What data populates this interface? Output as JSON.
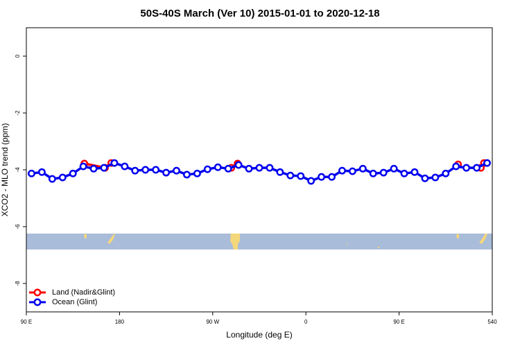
{
  "chart_data": {
    "type": "line",
    "title": "50S-40S March (Ver 10)   2015-01-01 to 2020-12-18",
    "x_label": "Longitude (deg E)",
    "y_label": "XCO2 - MLO trend (ppm)",
    "xlim": [
      90,
      540
    ],
    "ylim": [
      -9,
      1
    ],
    "xticks": [
      {
        "value": 90,
        "label": "90 E"
      },
      180,
      {
        "value": 270,
        "label": "90 W"
      },
      {
        "value": 360,
        "label": "0"
      },
      {
        "value": 450,
        "label": "90 E"
      },
      540
    ],
    "yticks": [
      0,
      -2,
      -4,
      -6,
      -8
    ],
    "legend": "bottom-left",
    "series": [
      {
        "name": "Land (Nadir&Glint)",
        "color": "#ff0000",
        "x": [
          146,
          166,
          172,
          null,
          288,
          294,
          null,
          507,
          null,
          529,
          532
        ],
        "values": [
          -3.78,
          -3.93,
          -3.76,
          null,
          -3.93,
          -3.78,
          null,
          -3.81,
          null,
          -3.93,
          -3.76
        ]
      },
      {
        "name": "Ocean (Glint)",
        "color": "#0000ee",
        "x": [
          95,
          105,
          115,
          125,
          135,
          145,
          155,
          165,
          175,
          185,
          195,
          205,
          215,
          225,
          235,
          245,
          255,
          265,
          275,
          285,
          295,
          305,
          315,
          325,
          335,
          345,
          355,
          365,
          375,
          385,
          395,
          405,
          415,
          425,
          435,
          445,
          455,
          465,
          475,
          485,
          495,
          505,
          515,
          525,
          535
        ],
        "values": [
          -4.13,
          -4.08,
          -4.32,
          -4.27,
          -4.13,
          -3.88,
          -3.96,
          -3.93,
          -3.76,
          -3.88,
          -4.03,
          -4.0,
          -4.0,
          -4.1,
          -4.03,
          -4.17,
          -4.13,
          -3.98,
          -3.91,
          -3.96,
          -3.83,
          -3.96,
          -3.93,
          -3.93,
          -4.08,
          -4.2,
          -4.22,
          -4.39,
          -4.25,
          -4.25,
          -4.03,
          -4.05,
          -3.96,
          -4.13,
          -4.1,
          -3.96,
          -4.13,
          -4.08,
          -4.3,
          -4.27,
          -4.13,
          -3.88,
          -3.93,
          -3.93,
          -3.76
        ]
      }
    ]
  }
}
